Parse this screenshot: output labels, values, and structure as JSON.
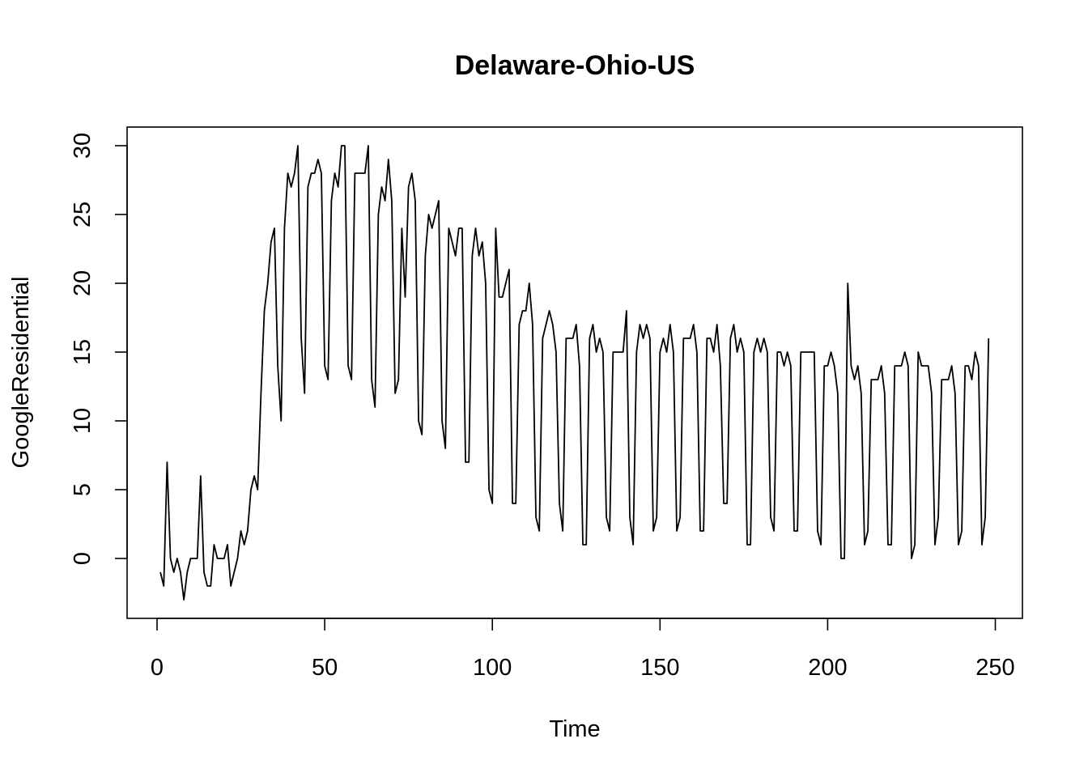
{
  "chart_data": {
    "type": "line",
    "title": "Delaware-Ohio-US",
    "xlabel": "Time",
    "ylabel": "GoogleResidential",
    "xlim": [
      1,
      248
    ],
    "ylim": [
      -3,
      30
    ],
    "xticks": [
      0,
      50,
      100,
      150,
      200,
      250
    ],
    "yticks": [
      0,
      5,
      10,
      15,
      20,
      25,
      30
    ],
    "grid": false,
    "legend": "none",
    "line_color": "#000000",
    "x_start": 1,
    "x_step": 1,
    "values": [
      -1,
      -2,
      7,
      0,
      -1,
      0,
      -1,
      -3,
      -1,
      0,
      0,
      0,
      6,
      -1,
      -2,
      -2,
      1,
      0,
      0,
      0,
      1,
      -2,
      -1,
      0,
      2,
      1,
      2,
      5,
      6,
      5,
      12,
      18,
      20,
      23,
      24,
      14,
      10,
      24,
      28,
      27,
      28,
      30,
      16,
      12,
      27,
      28,
      28,
      29,
      28,
      14,
      13,
      26,
      28,
      27,
      30,
      30,
      14,
      13,
      28,
      28,
      28,
      28,
      30,
      13,
      11,
      25,
      27,
      26,
      29,
      26,
      12,
      13,
      24,
      19,
      27,
      28,
      26,
      10,
      9,
      22,
      25,
      24,
      25,
      26,
      10,
      8,
      24,
      23,
      22,
      24,
      24,
      7,
      7,
      22,
      24,
      22,
      23,
      20,
      5,
      4,
      24,
      19,
      19,
      20,
      21,
      4,
      4,
      17,
      18,
      18,
      20,
      17,
      3,
      2,
      16,
      17,
      18,
      17,
      15,
      4,
      2,
      16,
      16,
      16,
      17,
      14,
      1,
      1,
      16,
      17,
      15,
      16,
      15,
      3,
      2,
      15,
      15,
      15,
      15,
      18,
      3,
      1,
      15,
      17,
      16,
      17,
      16,
      2,
      3,
      15,
      16,
      15,
      17,
      15,
      2,
      3,
      16,
      16,
      16,
      17,
      15,
      2,
      2,
      16,
      16,
      15,
      17,
      14,
      4,
      4,
      16,
      17,
      15,
      16,
      15,
      1,
      1,
      15,
      16,
      15,
      16,
      15,
      3,
      2,
      15,
      15,
      14,
      15,
      14,
      2,
      2,
      15,
      15,
      15,
      15,
      15,
      2,
      1,
      14,
      14,
      15,
      14,
      12,
      0,
      0,
      20,
      14,
      13,
      14,
      12,
      1,
      2,
      13,
      13,
      13,
      14,
      12,
      1,
      1,
      14,
      14,
      14,
      15,
      14,
      0,
      1,
      15,
      14,
      14,
      14,
      12,
      1,
      3,
      13,
      13,
      13,
      14,
      12,
      1,
      2,
      14,
      14,
      13,
      15,
      14,
      1,
      3,
      16
    ]
  }
}
